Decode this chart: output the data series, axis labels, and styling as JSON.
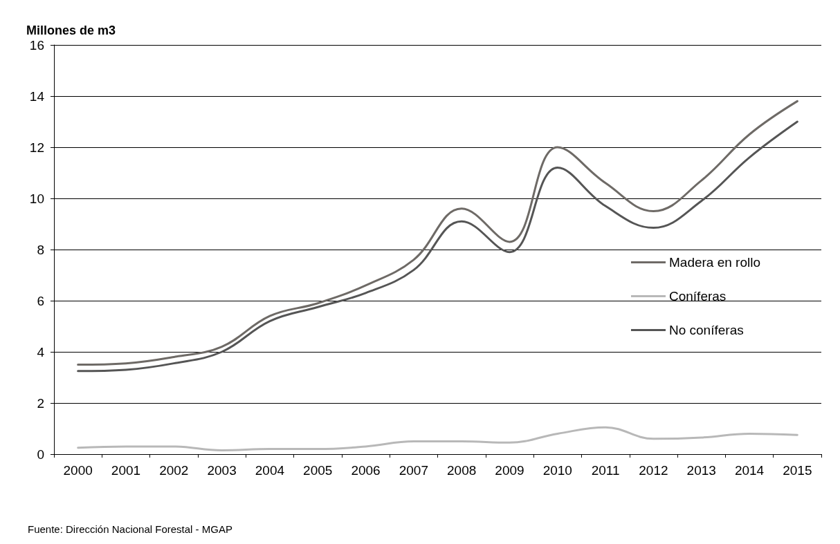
{
  "chart_data": {
    "type": "line",
    "ylabel": "Millones de m3",
    "categories": [
      "2000",
      "2001",
      "2002",
      "2003",
      "2004",
      "2005",
      "2006",
      "2007",
      "2008",
      "2009",
      "2010",
      "2011",
      "2012",
      "2013",
      "2014",
      "2015"
    ],
    "series": [
      {
        "name": "Madera en rollo",
        "color": "#6e6a66",
        "values": [
          3.5,
          3.55,
          3.8,
          4.2,
          5.4,
          5.9,
          6.6,
          7.6,
          9.6,
          8.3,
          12.0,
          10.6,
          9.5,
          10.7,
          12.5,
          13.8
        ]
      },
      {
        "name": "Coníferas",
        "color": "#b8b8b8",
        "values": [
          0.25,
          0.3,
          0.3,
          0.15,
          0.2,
          0.2,
          0.3,
          0.5,
          0.5,
          0.45,
          0.8,
          1.05,
          0.6,
          0.65,
          0.8,
          0.75
        ]
      },
      {
        "name": "No coníferas",
        "color": "#555555",
        "values": [
          3.25,
          3.3,
          3.55,
          4.0,
          5.2,
          5.75,
          6.3,
          7.2,
          9.1,
          7.9,
          11.2,
          9.7,
          8.85,
          9.9,
          11.6,
          13.0
        ]
      }
    ],
    "ylim": [
      0,
      16
    ],
    "yticks": [
      0,
      2,
      4,
      6,
      8,
      10,
      12,
      14,
      16
    ],
    "grid": "y",
    "legend": "right",
    "marker": "none",
    "line_style": "solid",
    "annotations": [
      "Fuente: Dirección Nacional Forestal - MGAP"
    ]
  }
}
